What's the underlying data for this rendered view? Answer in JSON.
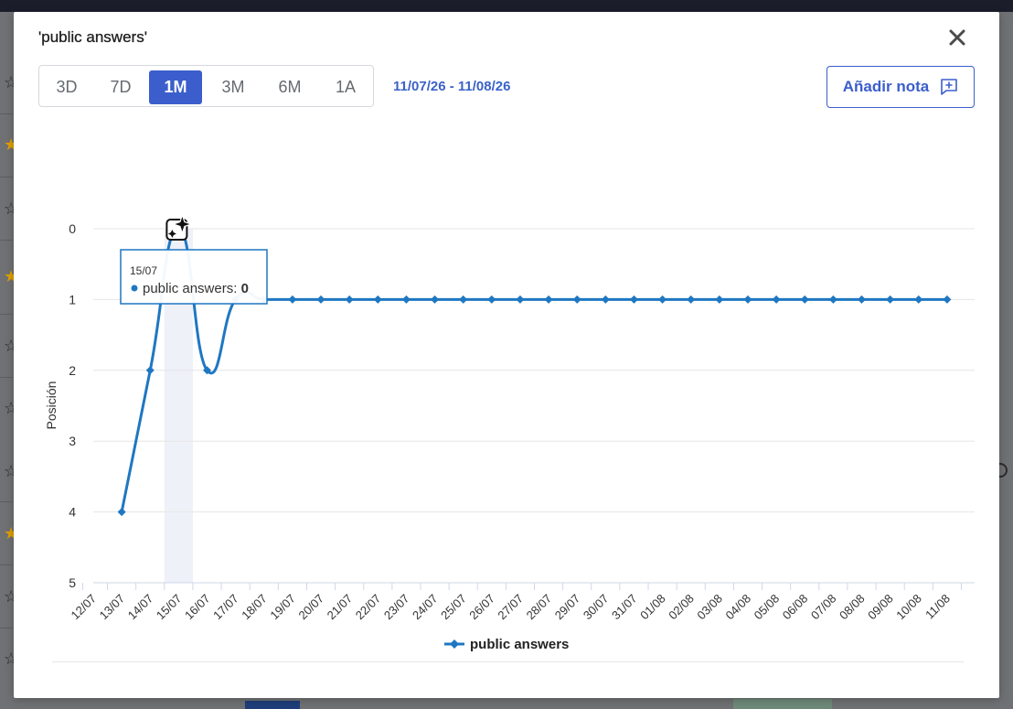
{
  "modal": {
    "title": "'public answers'",
    "date_range": "11/07/26 - 11/08/26",
    "add_note_label": "Añadir nota",
    "ranges": [
      {
        "label": "3D",
        "active": false
      },
      {
        "label": "7D",
        "active": false
      },
      {
        "label": "1M",
        "active": true
      },
      {
        "label": "3M",
        "active": false
      },
      {
        "label": "6M",
        "active": false
      },
      {
        "label": "1A",
        "active": false
      }
    ],
    "icons": {
      "close": "close-icon",
      "note": "add-note-icon",
      "marker": "sparkle-note-icon"
    }
  },
  "colors": {
    "accent": "#3b5ecc",
    "series": "#1f77c2",
    "highlight_band": "#eef1f8"
  },
  "tooltip": {
    "date": "15/07",
    "series": "public answers",
    "value": "0"
  },
  "chart_data": {
    "type": "line",
    "title": "",
    "ylabel": "Posición",
    "xlabel": "",
    "y_inverted": true,
    "ylim": [
      0,
      5
    ],
    "y_ticks": [
      0,
      1,
      2,
      3,
      4,
      5
    ],
    "grid": true,
    "legend": "bottom",
    "highlighted_category": "15/07",
    "categories": [
      "12/07",
      "13/07",
      "14/07",
      "15/07",
      "16/07",
      "17/07",
      "18/07",
      "19/07",
      "20/07",
      "21/07",
      "22/07",
      "23/07",
      "24/07",
      "25/07",
      "26/07",
      "27/07",
      "28/07",
      "29/07",
      "30/07",
      "31/07",
      "01/08",
      "02/08",
      "03/08",
      "04/08",
      "05/08",
      "06/08",
      "07/08",
      "08/08",
      "09/08",
      "10/08",
      "11/08"
    ],
    "series": [
      {
        "name": "public answers",
        "values": [
          null,
          4,
          2,
          0,
          2,
          1,
          1,
          1,
          1,
          1,
          1,
          1,
          1,
          1,
          1,
          1,
          1,
          1,
          1,
          1,
          1,
          1,
          1,
          1,
          1,
          1,
          1,
          1,
          1,
          1,
          1
        ]
      }
    ]
  }
}
